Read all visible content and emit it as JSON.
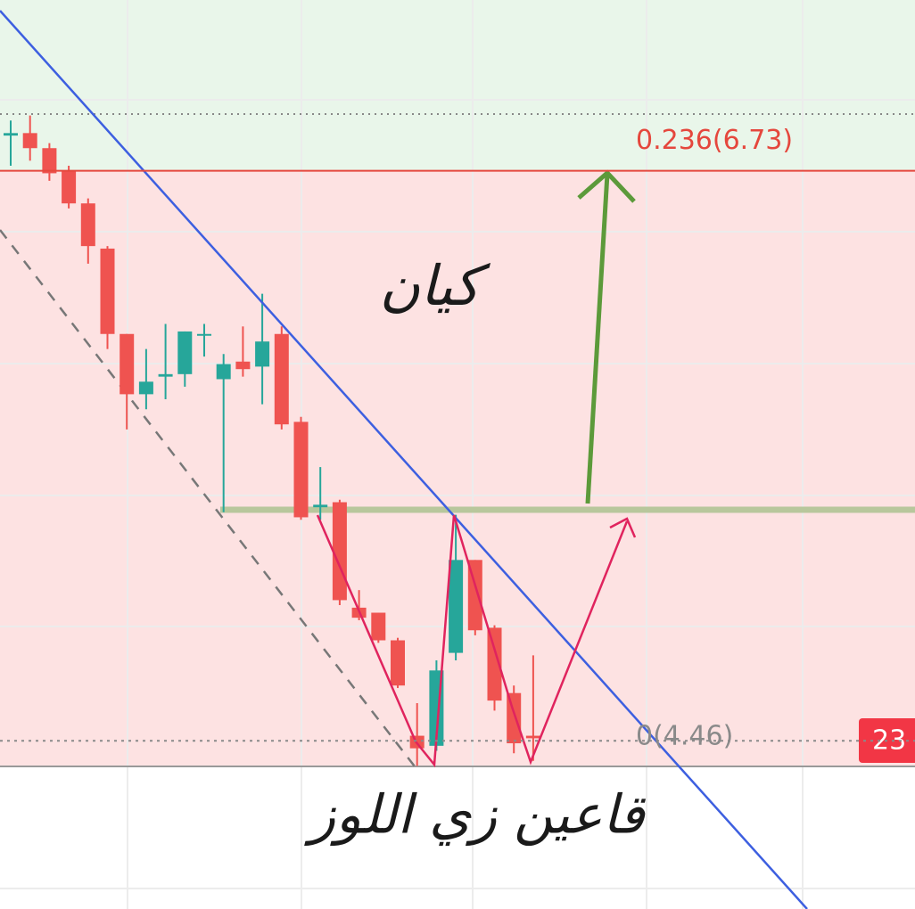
{
  "chart_data": {
    "type": "candlestick",
    "candles": [
      [
        6.87,
        6.93,
        6.75,
        6.88
      ],
      [
        6.88,
        6.95,
        6.77,
        6.82
      ],
      [
        6.82,
        6.84,
        6.69,
        6.72
      ],
      [
        6.73,
        6.75,
        6.58,
        6.6
      ],
      [
        6.6,
        6.62,
        6.36,
        6.43
      ],
      [
        6.42,
        6.43,
        6.02,
        6.08
      ],
      [
        6.08,
        6.08,
        5.7,
        5.84
      ],
      [
        5.84,
        6.02,
        5.78,
        5.89
      ],
      [
        5.91,
        6.12,
        5.82,
        5.92
      ],
      [
        5.92,
        6.09,
        5.87,
        6.09
      ],
      [
        6.08,
        6.12,
        5.99,
        6.08
      ],
      [
        5.9,
        6.0,
        5.37,
        5.96
      ],
      [
        5.97,
        6.11,
        5.91,
        5.94
      ],
      [
        5.95,
        6.24,
        5.8,
        6.05
      ],
      [
        6.08,
        6.11,
        5.7,
        5.72
      ],
      [
        5.73,
        5.75,
        5.34,
        5.35
      ],
      [
        5.39,
        5.55,
        5.34,
        5.4
      ],
      [
        5.41,
        5.42,
        5.0,
        5.02
      ],
      [
        4.99,
        5.06,
        4.94,
        4.95
      ],
      [
        4.97,
        4.97,
        4.85,
        4.86
      ],
      [
        4.86,
        4.87,
        4.67,
        4.68
      ],
      [
        4.48,
        4.61,
        4.36,
        4.43
      ],
      [
        4.44,
        4.78,
        4.42,
        4.74
      ],
      [
        4.81,
        5.36,
        4.78,
        5.18
      ],
      [
        5.18,
        5.18,
        4.88,
        4.9
      ],
      [
        4.91,
        4.92,
        4.58,
        4.62
      ],
      [
        4.65,
        4.68,
        4.41,
        4.45
      ],
      [
        4.48,
        4.8,
        4.38,
        4.47
      ]
    ],
    "up_color": "#26a69a",
    "down_color": "#ef5350",
    "ylim": [
      3.79,
      7.41
    ],
    "levels": [
      {
        "value": 6.73,
        "label": "0.236(6.73)",
        "color": "#e5473d"
      },
      {
        "value": 4.46,
        "label": "0(4.46)",
        "color": "#8a8a8a"
      }
    ],
    "price_tag": "23",
    "annotations": [
      "كيان",
      "قاعين زي اللوز"
    ]
  }
}
